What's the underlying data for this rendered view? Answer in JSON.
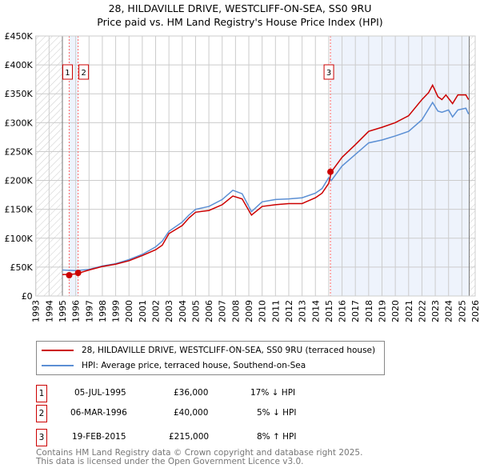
{
  "chart_data": {
    "type": "line",
    "title": "28, HILDAVILLE DRIVE, WESTCLIFF-ON-SEA, SS0 9RU",
    "subtitle": "Price paid vs. HM Land Registry's House Price Index (HPI)",
    "xlim": [
      1993,
      2026
    ],
    "ylim": [
      0,
      450000
    ],
    "x_ticks": [
      "1993",
      "1994",
      "1995",
      "1996",
      "1997",
      "1998",
      "1999",
      "2000",
      "2001",
      "2002",
      "2003",
      "2004",
      "2005",
      "2006",
      "2007",
      "2008",
      "2009",
      "2010",
      "2011",
      "2012",
      "2013",
      "2014",
      "2015",
      "2016",
      "2017",
      "2018",
      "2019",
      "2020",
      "2021",
      "2022",
      "2023",
      "2024",
      "2025",
      "2026"
    ],
    "y_ticks": [
      {
        "v": 0,
        "l": "£0"
      },
      {
        "v": 50000,
        "l": "£50K"
      },
      {
        "v": 100000,
        "l": "£100K"
      },
      {
        "v": 150000,
        "l": "£150K"
      },
      {
        "v": 200000,
        "l": "£200K"
      },
      {
        "v": 250000,
        "l": "£250K"
      },
      {
        "v": 300000,
        "l": "£300K"
      },
      {
        "v": 350000,
        "l": "£350K"
      },
      {
        "v": 400000,
        "l": "£400K"
      },
      {
        "v": 450000,
        "l": "£450K"
      }
    ],
    "grid": true,
    "series": [
      {
        "name": "28, HILDAVILLE DRIVE, WESTCLIFF-ON-SEA, SS0 9RU (terraced house)",
        "color": "#cc0000",
        "points": [
          [
            1995,
            37000
          ],
          [
            1996,
            38000
          ],
          [
            1997,
            45000
          ],
          [
            1998,
            51000
          ],
          [
            1999,
            55000
          ],
          [
            2000,
            61000
          ],
          [
            2001,
            70000
          ],
          [
            2002,
            80000
          ],
          [
            2002.5,
            88000
          ],
          [
            2003,
            108000
          ],
          [
            2004,
            122000
          ],
          [
            2004.5,
            135000
          ],
          [
            2005,
            145000
          ],
          [
            2006,
            148000
          ],
          [
            2007,
            158000
          ],
          [
            2007.8,
            173000
          ],
          [
            2008.5,
            168000
          ],
          [
            2009.2,
            140000
          ],
          [
            2010,
            155000
          ],
          [
            2011,
            158000
          ],
          [
            2012,
            160000
          ],
          [
            2013,
            160000
          ],
          [
            2014,
            170000
          ],
          [
            2014.5,
            178000
          ],
          [
            2015,
            195000
          ],
          [
            2015.2,
            215000
          ],
          [
            2016,
            240000
          ],
          [
            2017,
            262000
          ],
          [
            2018,
            285000
          ],
          [
            2019,
            292000
          ],
          [
            2020,
            300000
          ],
          [
            2021,
            312000
          ],
          [
            2022,
            340000
          ],
          [
            2022.5,
            352000
          ],
          [
            2022.8,
            365000
          ],
          [
            2023.2,
            345000
          ],
          [
            2023.5,
            340000
          ],
          [
            2023.8,
            348000
          ],
          [
            2024.3,
            333000
          ],
          [
            2024.7,
            348000
          ],
          [
            2025.3,
            348000
          ],
          [
            2025.5,
            340000
          ]
        ]
      },
      {
        "name": "HPI: Average price, terraced house, Southend-on-Sea",
        "color": "#5b8fd4",
        "points": [
          [
            1995,
            45000
          ],
          [
            1996,
            44000
          ],
          [
            1997,
            46000
          ],
          [
            1998,
            52000
          ],
          [
            1999,
            56000
          ],
          [
            2000,
            63000
          ],
          [
            2001,
            72000
          ],
          [
            2002,
            85000
          ],
          [
            2002.5,
            95000
          ],
          [
            2003,
            112000
          ],
          [
            2004,
            128000
          ],
          [
            2004.5,
            140000
          ],
          [
            2005,
            150000
          ],
          [
            2006,
            155000
          ],
          [
            2007,
            167000
          ],
          [
            2007.8,
            183000
          ],
          [
            2008.5,
            177000
          ],
          [
            2009.2,
            146000
          ],
          [
            2010,
            163000
          ],
          [
            2011,
            167000
          ],
          [
            2012,
            168000
          ],
          [
            2013,
            170000
          ],
          [
            2014,
            178000
          ],
          [
            2014.5,
            186000
          ],
          [
            2015,
            205000
          ],
          [
            2015.2,
            200000
          ],
          [
            2016,
            225000
          ],
          [
            2017,
            245000
          ],
          [
            2018,
            265000
          ],
          [
            2019,
            270000
          ],
          [
            2020,
            277000
          ],
          [
            2021,
            285000
          ],
          [
            2022,
            305000
          ],
          [
            2022.8,
            335000
          ],
          [
            2023.2,
            320000
          ],
          [
            2023.5,
            318000
          ],
          [
            2024,
            322000
          ],
          [
            2024.3,
            310000
          ],
          [
            2024.7,
            322000
          ],
          [
            2025.3,
            325000
          ],
          [
            2025.5,
            315000
          ]
        ]
      }
    ],
    "sales": [
      {
        "label": "1",
        "x": 1995.51,
        "y": 36000
      },
      {
        "label": "2",
        "x": 1996.18,
        "y": 40000
      },
      {
        "label": "3",
        "x": 2015.13,
        "y": 215000
      }
    ]
  },
  "legend": {
    "red": "28, HILDAVILLE DRIVE, WESTCLIFF-ON-SEA, SS0 9RU (terraced house)",
    "blue": "HPI: Average price, terraced house, Southend-on-Sea"
  },
  "table": [
    {
      "n": "1",
      "date": "05-JUL-1995",
      "price": "£36,000",
      "hpi": "17% ↓ HPI"
    },
    {
      "n": "2",
      "date": "06-MAR-1996",
      "price": "£40,000",
      "hpi": "5% ↓ HPI"
    },
    {
      "n": "3",
      "date": "19-FEB-2015",
      "price": "£215,000",
      "hpi": "8% ↑ HPI"
    }
  ],
  "footer": {
    "line1": "Contains HM Land Registry data © Crown copyright and database right 2025.",
    "line2": "This data is licensed under the Open Government Licence v3.0."
  }
}
